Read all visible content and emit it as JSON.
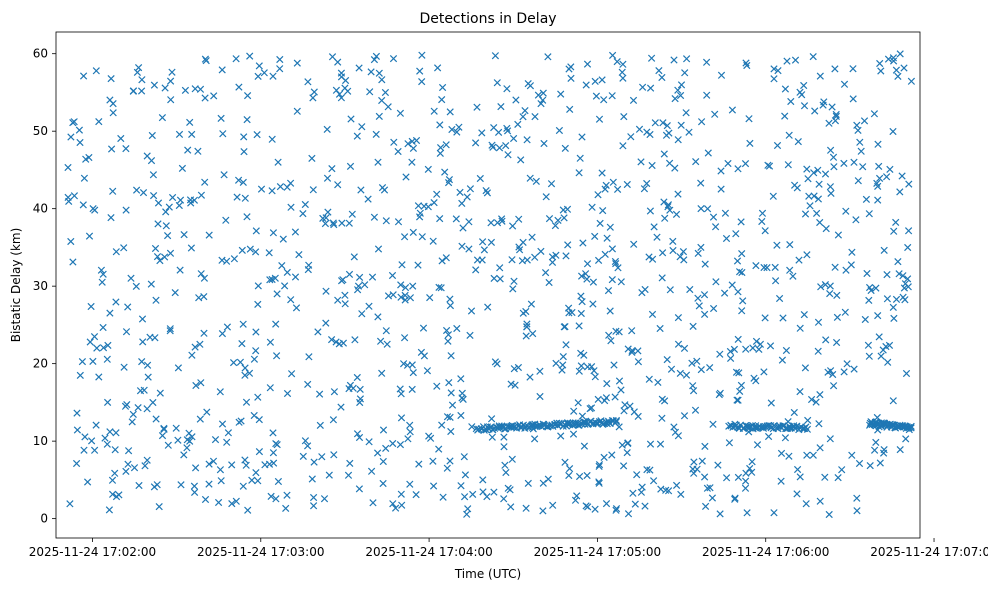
{
  "chart_data": {
    "type": "scatter",
    "title": "Detections in Delay",
    "xlabel": "Time (UTC)",
    "ylabel": "Bistatic Delay (km)",
    "marker": "x",
    "color": "#1f77b4",
    "grid": false,
    "xlim": [
      "2025-11-24 17:01:47",
      "2025-11-24 17:06:55"
    ],
    "ylim": [
      -2.5,
      62.8
    ],
    "x_ticks": [
      "2025-11-24 17:02:00",
      "2025-11-24 17:03:00",
      "2025-11-24 17:04:00",
      "2025-11-24 17:05:00",
      "2025-11-24 17:06:00",
      "2025-11-24 17:07:00"
    ],
    "y_ticks": [
      0,
      10,
      20,
      30,
      40,
      50,
      60
    ],
    "time_range": [
      "2025-11-24 17:01:51",
      "2025-11-24 17:06:52"
    ],
    "delay_range": [
      0.5,
      60
    ],
    "point_count": 1450,
    "clusters": [
      {
        "start": "2025-11-24 17:04:17",
        "end": "2025-11-24 17:05:07",
        "delay_start": 11.6,
        "delay_end": 12.5,
        "count": 110
      },
      {
        "start": "2025-11-24 17:05:47",
        "end": "2025-11-24 17:06:15",
        "delay_start": 11.9,
        "delay_end": 11.7,
        "count": 60
      },
      {
        "start": "2025-11-24 17:06:37",
        "end": "2025-11-24 17:06:52",
        "delay_start": 12.3,
        "delay_end": 11.7,
        "count": 50
      }
    ]
  }
}
